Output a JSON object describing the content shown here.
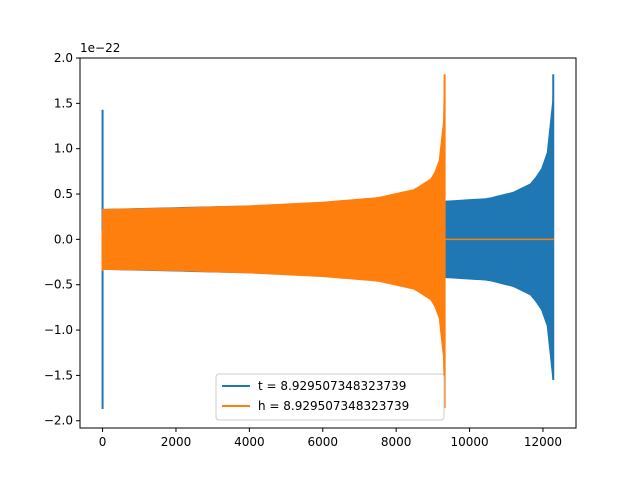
{
  "chart_data": {
    "type": "line",
    "title": "",
    "xlabel": "",
    "ylabel": "",
    "y_offset_label": "1e−22",
    "xlim": [
      -615,
      12900
    ],
    "ylim": [
      -2.08,
      2.0
    ],
    "x_ticks": [
      0,
      2000,
      4000,
      6000,
      8000,
      10000,
      12000
    ],
    "x_tick_labels": [
      "0",
      "2000",
      "4000",
      "6000",
      "8000",
      "10000",
      "12000"
    ],
    "y_ticks": [
      -2.0,
      -1.5,
      -1.0,
      -0.5,
      0.0,
      0.5,
      1.0,
      1.5,
      2.0
    ],
    "y_tick_labels": [
      "−2.0",
      "−1.5",
      "−1.0",
      "−0.5",
      "0.0",
      "0.5",
      "1.0",
      "1.5",
      "2.0"
    ],
    "grid": false,
    "legend_position": "lower center",
    "series": [
      {
        "name": "t = 8.929507348323739",
        "color": "#1f77b4",
        "spike": {
          "x": 0,
          "min": -1.87,
          "max": 1.43
        },
        "envelope_points": [
          {
            "x": 0,
            "amp": 0.33
          },
          {
            "x": 9310,
            "amp": 0.42
          },
          {
            "x": 10500,
            "amp": 0.45
          },
          {
            "x": 11200,
            "amp": 0.52
          },
          {
            "x": 11700,
            "amp": 0.62
          },
          {
            "x": 12000,
            "amp": 0.8
          },
          {
            "x": 12150,
            "amp": 1.0
          },
          {
            "x": 12230,
            "amp": 1.3
          },
          {
            "x": 12270,
            "amp": 1.54
          }
        ],
        "end_spike": {
          "x": 12280,
          "min": -1.55,
          "max": 1.82
        },
        "tail": {
          "x_start": 12290,
          "x_end": 12300,
          "value": 0.0
        }
      },
      {
        "name": "h = 8.929507348323739",
        "color": "#ff7f0e",
        "spike": {
          "x": 0,
          "min": -0.35,
          "max": 0.1
        },
        "envelope_points": [
          {
            "x": 0,
            "amp": 0.33
          },
          {
            "x": 2000,
            "amp": 0.345
          },
          {
            "x": 4000,
            "amp": 0.37
          },
          {
            "x": 6000,
            "amp": 0.41
          },
          {
            "x": 7500,
            "amp": 0.46
          },
          {
            "x": 8500,
            "amp": 0.55
          },
          {
            "x": 9000,
            "amp": 0.68
          },
          {
            "x": 9200,
            "amp": 0.9
          },
          {
            "x": 9290,
            "amp": 1.3
          }
        ],
        "end_spike": {
          "x": 9320,
          "min": -1.86,
          "max": 1.82
        },
        "tail": {
          "x_start": 9330,
          "x_end": 12300,
          "value": 0.0
        }
      }
    ]
  }
}
